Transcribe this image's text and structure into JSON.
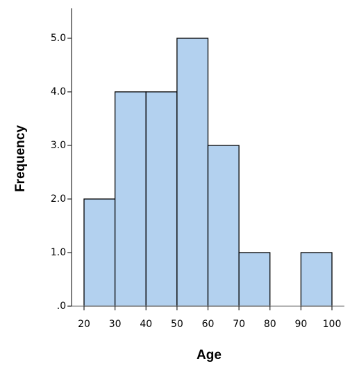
{
  "chart_data": {
    "type": "histogram",
    "x_label": "Age",
    "y_label": "Frequency",
    "bins": [
      20,
      30,
      40,
      50,
      60,
      70,
      80,
      90,
      100
    ],
    "counts": [
      2,
      4,
      4,
      5,
      3,
      1,
      0,
      1
    ],
    "color": "#b3d1ef",
    "edge_color": "#000000",
    "xlim": [
      16,
      104
    ],
    "xticks": [
      20,
      30,
      40,
      50,
      60,
      70,
      80,
      90,
      100
    ],
    "ylim": [
      0,
      5.5
    ],
    "yticks": [
      {
        "value": 0,
        "label": ".0"
      },
      {
        "value": 1,
        "label": "1.0"
      },
      {
        "value": 2,
        "label": "2.0"
      },
      {
        "value": 3,
        "label": "3.0"
      },
      {
        "value": 4,
        "label": "4.0"
      },
      {
        "value": 5,
        "label": "5.0"
      }
    ],
    "grid": false
  }
}
